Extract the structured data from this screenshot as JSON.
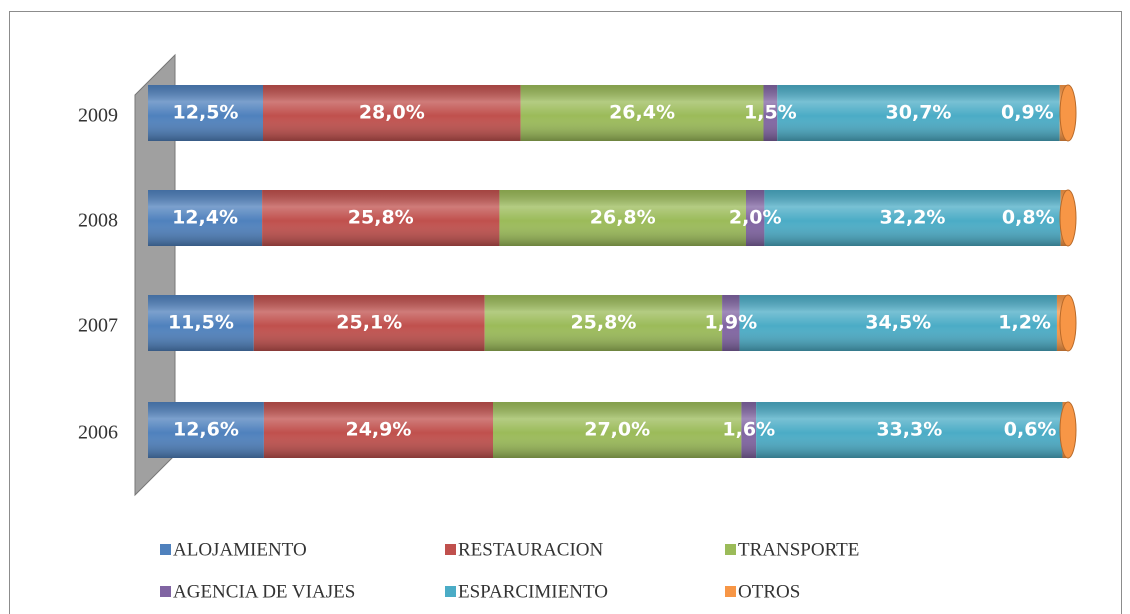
{
  "chart_data": {
    "type": "bar",
    "orientation": "horizontal",
    "stacked": true,
    "categories": [
      "2009",
      "2008",
      "2007",
      "2006"
    ],
    "xlim": [
      0,
      100
    ],
    "legend": "bottom",
    "series": [
      {
        "name": "ALOJAMIENTO",
        "color": "#4f81bd",
        "values": [
          12.5,
          12.4,
          11.5,
          12.6
        ],
        "value_labels": [
          "12,5%",
          "12,4%",
          "11,5%",
          "12,6%"
        ]
      },
      {
        "name": "RESTAURACION",
        "color": "#c0504d",
        "values": [
          28.0,
          25.8,
          25.1,
          24.9
        ],
        "value_labels": [
          "28,0%",
          "25,8%",
          "25,1%",
          "24,9%"
        ]
      },
      {
        "name": "TRANSPORTE",
        "color": "#9bbb59",
        "values": [
          26.4,
          26.8,
          25.8,
          27.0
        ],
        "value_labels": [
          "26,4%",
          "26,8%",
          "25,8%",
          "27,0%"
        ]
      },
      {
        "name": "AGENCIA DE VIAJES",
        "color": "#8064a2",
        "values": [
          1.5,
          2.0,
          1.9,
          1.6
        ],
        "value_labels": [
          "1,5%",
          "2,0%",
          "1,9%",
          "1,6%"
        ]
      },
      {
        "name": "ESPARCIMIENTO",
        "color": "#4bacc6",
        "values": [
          30.7,
          32.2,
          34.5,
          33.3
        ],
        "value_labels": [
          "30,7%",
          "32,2%",
          "34,5%",
          "33,3%"
        ]
      },
      {
        "name": "OTROS",
        "color": "#f79646",
        "values": [
          0.9,
          0.8,
          1.2,
          0.6
        ],
        "value_labels": [
          "0,9%",
          "0,8%",
          "1,2%",
          "0,6%"
        ]
      }
    ]
  }
}
